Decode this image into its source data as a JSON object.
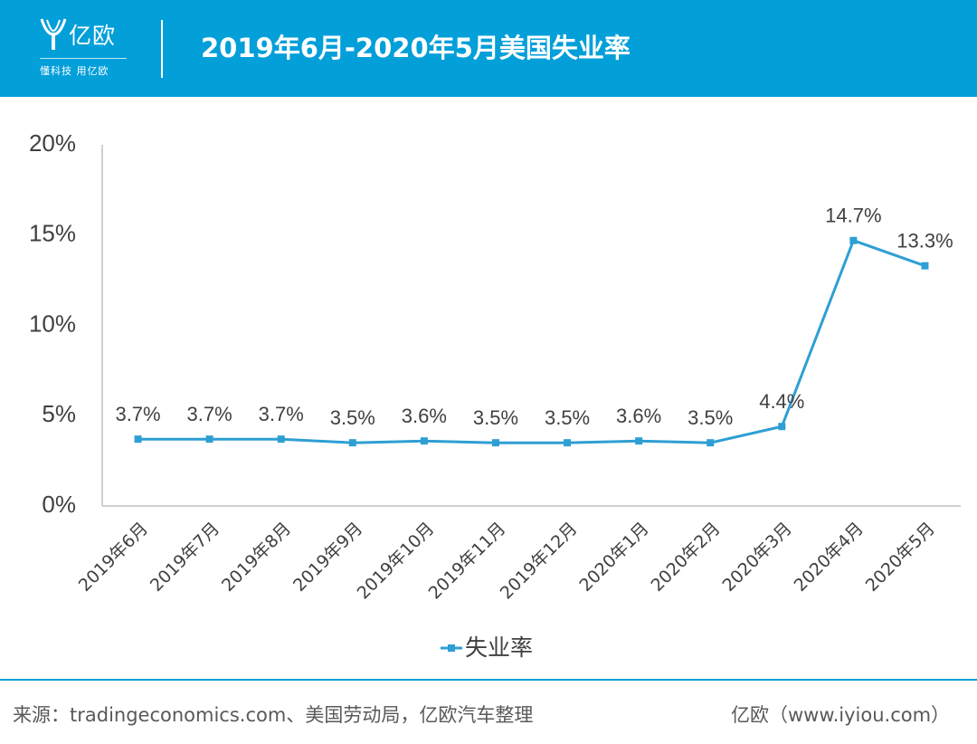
{
  "header": {
    "logo_name": "亿欧",
    "logo_slogan": "懂科技 用亿欧",
    "title": "2019年6月-2020年5月美国失业率"
  },
  "colors": {
    "brand": "#029fd9",
    "series": "#2e9fd4",
    "axis": "#bfbfbf",
    "text": "#404040"
  },
  "chart_data": {
    "type": "line",
    "title": "2019年6月-2020年5月美国失业率",
    "categories": [
      "2019年6月",
      "2019年7月",
      "2019年8月",
      "2019年9月",
      "2019年10月",
      "2019年11月",
      "2019年12月",
      "2020年1月",
      "2020年2月",
      "2020年3月",
      "2020年4月",
      "2020年5月"
    ],
    "series": [
      {
        "name": "失业率",
        "values": [
          3.7,
          3.7,
          3.7,
          3.5,
          3.6,
          3.5,
          3.5,
          3.6,
          3.5,
          4.4,
          14.7,
          13.3
        ],
        "labels": [
          "3.7%",
          "3.7%",
          "3.7%",
          "3.5%",
          "3.6%",
          "3.5%",
          "3.5%",
          "3.6%",
          "3.5%",
          "4.4%",
          "14.7%",
          "13.3%"
        ]
      }
    ],
    "y_ticks": [
      "0%",
      "5%",
      "10%",
      "15%",
      "20%"
    ],
    "ylim": [
      0,
      20
    ],
    "grid": false,
    "legend": "bottom"
  },
  "footer": {
    "source": "来源：tradingeconomics.com、美国劳动局，亿欧汽车整理",
    "brand": "亿欧（www.iyiou.com）"
  }
}
